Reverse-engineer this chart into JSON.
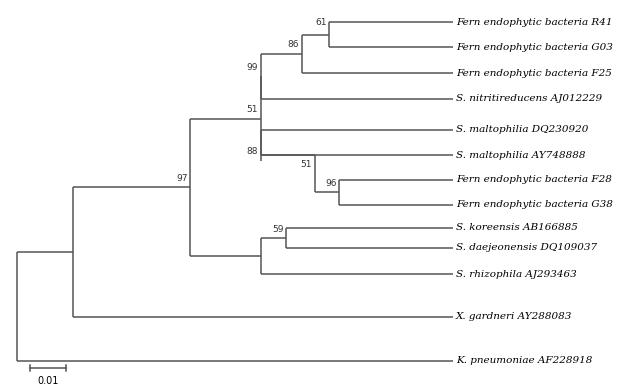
{
  "taxa": [
    "Fern endophytic bacteria R41",
    "Fern endophytic bacteria G03",
    "Fern endophytic bacteria F25",
    "S. nitritireducens AJ012229",
    "S. maltophilia DQ230920",
    "S. maltophilia AY748888",
    "Fern endophytic bacteria F28",
    "Fern endophytic bacteria G38",
    "S. koreensis AB166885",
    "S. daejeonensis DQ109037",
    "S. rhizophila AJ293463",
    "X. gardneri AY288083",
    "K. pneumoniae AF228918"
  ],
  "background": "#ffffff",
  "line_color": "#555555",
  "text_color": "#000000",
  "scalebar_label": "0.01"
}
